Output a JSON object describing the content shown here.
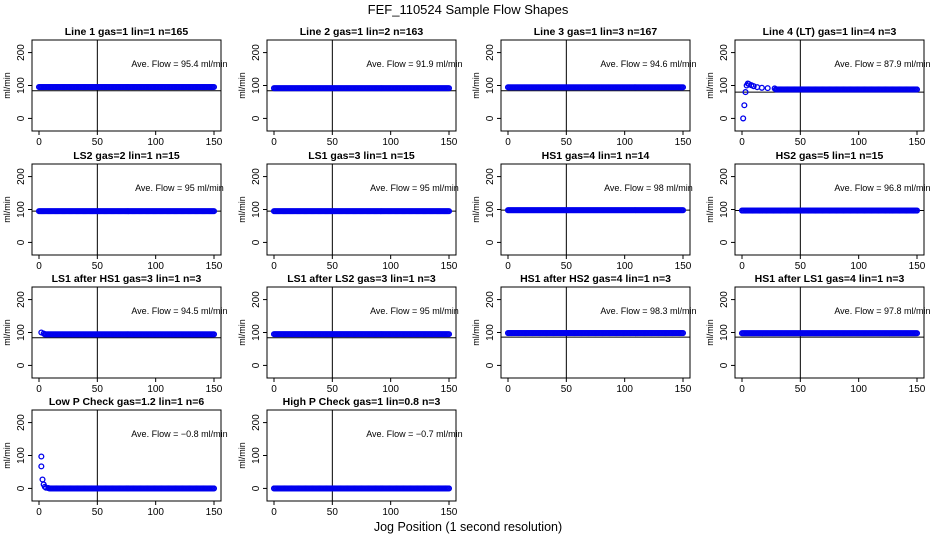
{
  "figure": {
    "title": "FEF_110524  Sample Flow Shapes",
    "xlabel": "Jog Position (1 second resolution)",
    "colors": {
      "points": "#0000ee",
      "axes": "#000000",
      "background": "#ffffff"
    },
    "grid": "2 columns of 4-panel rows (4x4 layout, last row has 2 panels)"
  },
  "chart_data": [
    {
      "type": "scatter",
      "title": "Line 1 gas=1 lin=1 n=165",
      "annotation": "Ave. Flow =  95.4  ml/min",
      "ylabel": "ml/min",
      "xlim": [
        0,
        150
      ],
      "ylim": [
        -20,
        220
      ],
      "xticks": [
        0,
        50,
        100,
        150
      ],
      "yticks": [
        0,
        100,
        200
      ],
      "vline": 50,
      "hline": 84,
      "series": [
        {
          "shape": "flat",
          "x_start": 0,
          "x_end": 150,
          "level": 95.4
        }
      ]
    },
    {
      "type": "scatter",
      "title": "Line 2 gas=1 lin=2 n=163",
      "annotation": "Ave. Flow =  91.9  ml/min",
      "ylabel": "ml/min",
      "xlim": [
        0,
        150
      ],
      "ylim": [
        -20,
        220
      ],
      "xticks": [
        0,
        50,
        100,
        150
      ],
      "yticks": [
        0,
        100,
        200
      ],
      "vline": 50,
      "hline": 84,
      "series": [
        {
          "shape": "flat",
          "x_start": 0,
          "x_end": 150,
          "level": 91.9
        }
      ]
    },
    {
      "type": "scatter",
      "title": "Line 3 gas=1 lin=3 n=167",
      "annotation": "Ave. Flow =  94.6  ml/min",
      "ylabel": "ml/min",
      "xlim": [
        0,
        150
      ],
      "ylim": [
        -20,
        220
      ],
      "xticks": [
        0,
        50,
        100,
        150
      ],
      "yticks": [
        0,
        100,
        200
      ],
      "vline": 50,
      "hline": 84,
      "series": [
        {
          "shape": "flat",
          "x_start": 0,
          "x_end": 150,
          "level": 94.6
        }
      ]
    },
    {
      "type": "scatter",
      "title": "Line 4 (LT) gas=1 lin=4 n=3",
      "annotation": "Ave. Flow =  87.9  ml/min",
      "ylabel": "ml/min",
      "xlim": [
        0,
        150
      ],
      "ylim": [
        -20,
        220
      ],
      "xticks": [
        0,
        50,
        100,
        150
      ],
      "yticks": [
        0,
        100,
        200
      ],
      "vline": 50,
      "hline": 80,
      "series": [
        {
          "shape": "startup",
          "x_start": 0,
          "x_end": 150,
          "level": 87.9,
          "initial_points": [
            [
              1,
              0
            ],
            [
              2,
              40
            ],
            [
              3,
              80
            ],
            [
              4,
              100
            ],
            [
              5,
              106
            ],
            [
              6,
              104
            ],
            [
              8,
              101
            ],
            [
              10,
              98
            ],
            [
              13,
              95
            ],
            [
              17,
              93
            ],
            [
              22,
              92
            ],
            [
              28,
              91
            ]
          ]
        }
      ]
    },
    {
      "type": "scatter",
      "title": "LS2 gas=2 lin=1 n=15",
      "annotation": "Ave. Flow =  95  ml/min",
      "ylabel": "ml/min",
      "xlim": [
        0,
        150
      ],
      "ylim": [
        -20,
        220
      ],
      "xticks": [
        0,
        50,
        100,
        150
      ],
      "yticks": [
        0,
        100,
        200
      ],
      "vline": 50,
      "hline": 95,
      "series": [
        {
          "shape": "flat",
          "x_start": 0,
          "x_end": 150,
          "level": 95
        }
      ]
    },
    {
      "type": "scatter",
      "title": "LS1 gas=3 lin=1 n=15",
      "annotation": "Ave. Flow =  95  ml/min",
      "ylabel": "ml/min",
      "xlim": [
        0,
        150
      ],
      "ylim": [
        -20,
        220
      ],
      "xticks": [
        0,
        50,
        100,
        150
      ],
      "yticks": [
        0,
        100,
        200
      ],
      "vline": 50,
      "hline": 95,
      "series": [
        {
          "shape": "flat",
          "x_start": 0,
          "x_end": 150,
          "level": 95
        }
      ]
    },
    {
      "type": "scatter",
      "title": "HS1 gas=4 lin=1 n=14",
      "annotation": "Ave. Flow =  98  ml/min",
      "ylabel": "ml/min",
      "xlim": [
        0,
        150
      ],
      "ylim": [
        -20,
        220
      ],
      "xticks": [
        0,
        50,
        100,
        150
      ],
      "yticks": [
        0,
        100,
        200
      ],
      "vline": 50,
      "hline": 98,
      "series": [
        {
          "shape": "flat",
          "x_start": 0,
          "x_end": 150,
          "level": 98
        }
      ]
    },
    {
      "type": "scatter",
      "title": "HS2 gas=5 lin=1 n=15",
      "annotation": "Ave. Flow =  96.8  ml/min",
      "ylabel": "ml/min",
      "xlim": [
        0,
        150
      ],
      "ylim": [
        -20,
        220
      ],
      "xticks": [
        0,
        50,
        100,
        150
      ],
      "yticks": [
        0,
        100,
        200
      ],
      "vline": 50,
      "hline": 96.8,
      "series": [
        {
          "shape": "flat",
          "x_start": 0,
          "x_end": 150,
          "level": 96.8
        }
      ]
    },
    {
      "type": "scatter",
      "title": "LS1 after HS1 gas=3 lin=1 n=3",
      "annotation": "Ave. Flow =  94.5  ml/min",
      "ylabel": "ml/min",
      "xlim": [
        0,
        150
      ],
      "ylim": [
        -20,
        220
      ],
      "xticks": [
        0,
        50,
        100,
        150
      ],
      "yticks": [
        0,
        100,
        200
      ],
      "vline": 50,
      "hline": 84,
      "series": [
        {
          "shape": "startup",
          "x_start": 0,
          "x_end": 150,
          "level": 94.5,
          "initial_points": [
            [
              2,
              100
            ],
            [
              4,
              97
            ]
          ]
        }
      ]
    },
    {
      "type": "scatter",
      "title": "LS1 after LS2 gas=3 lin=1 n=3",
      "annotation": "Ave. Flow =  95  ml/min",
      "ylabel": "ml/min",
      "xlim": [
        0,
        150
      ],
      "ylim": [
        -20,
        220
      ],
      "xticks": [
        0,
        50,
        100,
        150
      ],
      "yticks": [
        0,
        100,
        200
      ],
      "vline": 50,
      "hline": 84,
      "series": [
        {
          "shape": "flat",
          "x_start": 0,
          "x_end": 150,
          "level": 95
        }
      ]
    },
    {
      "type": "scatter",
      "title": "HS1 after HS2 gas=4 lin=1 n=3",
      "annotation": "Ave. Flow =  98.3  ml/min",
      "ylabel": "ml/min",
      "xlim": [
        0,
        150
      ],
      "ylim": [
        -20,
        220
      ],
      "xticks": [
        0,
        50,
        100,
        150
      ],
      "yticks": [
        0,
        100,
        200
      ],
      "vline": 50,
      "hline": 86,
      "series": [
        {
          "shape": "flat",
          "x_start": 0,
          "x_end": 150,
          "level": 98.3
        }
      ]
    },
    {
      "type": "scatter",
      "title": "HS1 after LS1 gas=4 lin=1 n=3",
      "annotation": "Ave. Flow =  97.8  ml/min",
      "ylabel": "ml/min",
      "xlim": [
        0,
        150
      ],
      "ylim": [
        -20,
        220
      ],
      "xticks": [
        0,
        50,
        100,
        150
      ],
      "yticks": [
        0,
        100,
        200
      ],
      "vline": 50,
      "hline": 86,
      "series": [
        {
          "shape": "flat",
          "x_start": 0,
          "x_end": 150,
          "level": 97.8
        }
      ]
    },
    {
      "type": "scatter",
      "title": "Low P Check gas=1.2 lin=1 n=6",
      "annotation": "Ave. Flow =  −0.8  ml/min",
      "ylabel": "ml/min",
      "xlim": [
        0,
        150
      ],
      "ylim": [
        -20,
        220
      ],
      "xticks": [
        0,
        50,
        100,
        150
      ],
      "yticks": [
        0,
        100,
        200
      ],
      "vline": 50,
      "hline": null,
      "series": [
        {
          "shape": "startup",
          "x_start": 0,
          "x_end": 150,
          "level": 0,
          "initial_points": [
            [
              2,
              97
            ],
            [
              2,
              67
            ],
            [
              3,
              27
            ],
            [
              4,
              12
            ],
            [
              5,
              5
            ],
            [
              6,
              2
            ],
            [
              8,
              1
            ]
          ]
        }
      ]
    },
    {
      "type": "scatter",
      "title": "High P Check gas=1 lin=0.8 n=3",
      "annotation": "Ave. Flow =  −0.7  ml/min",
      "ylabel": "ml/min",
      "xlim": [
        0,
        150
      ],
      "ylim": [
        -20,
        220
      ],
      "xticks": [
        0,
        50,
        100,
        150
      ],
      "yticks": [
        0,
        100,
        200
      ],
      "vline": 50,
      "hline": null,
      "series": [
        {
          "shape": "flat",
          "x_start": 0,
          "x_end": 150,
          "level": 0
        }
      ]
    }
  ]
}
